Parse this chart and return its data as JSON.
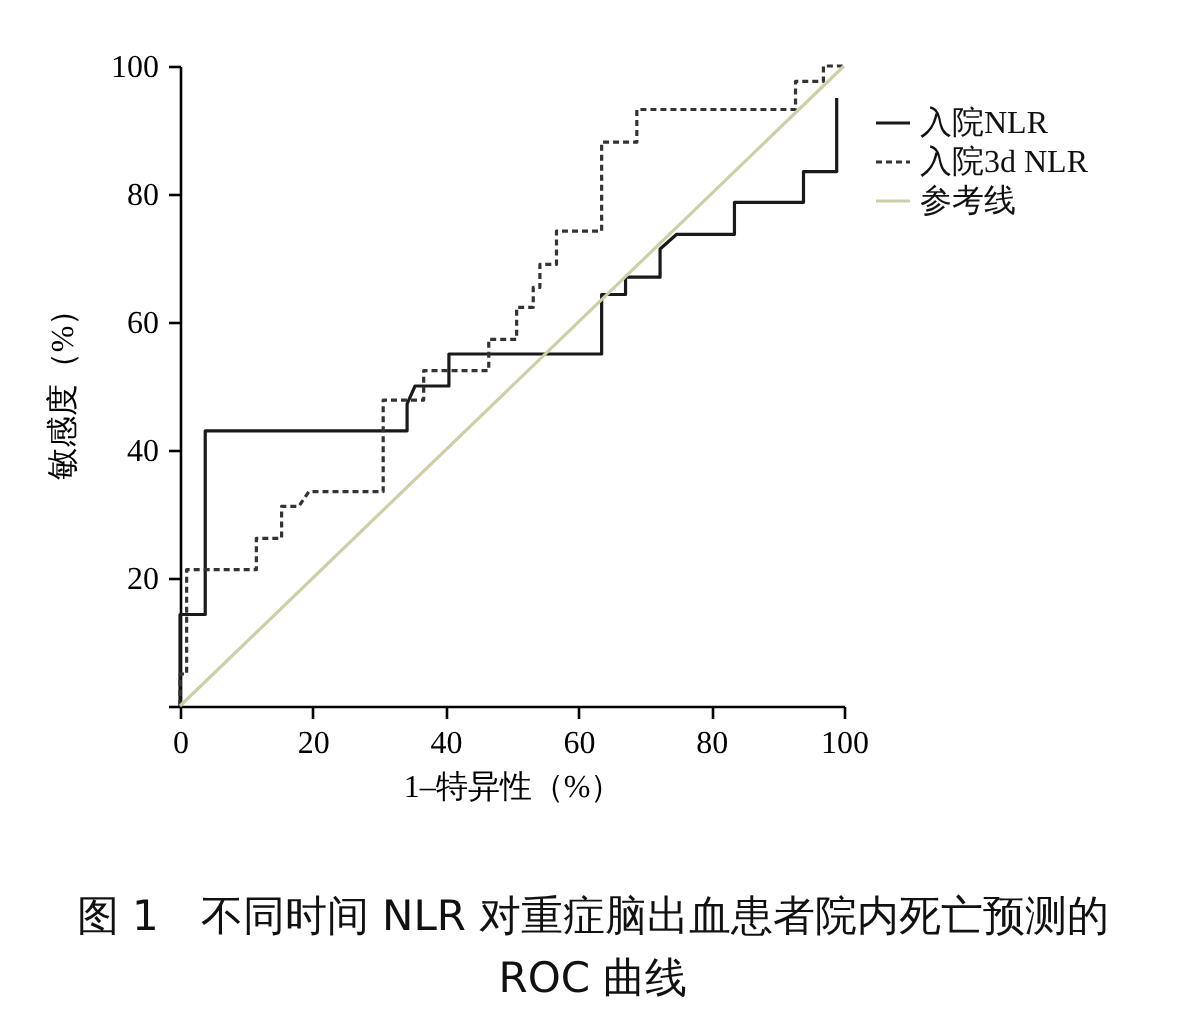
{
  "chart_data": {
    "type": "line",
    "title": "图 1　不同时间 NLR 对重症脑出血患者院内死亡预测的 ROC 曲线",
    "xlabel": "1–特异性（%）",
    "ylabel": "敏感度（%）",
    "xlim": [
      0,
      100
    ],
    "ylim": [
      0,
      100
    ],
    "xticks": [
      0,
      20,
      40,
      60,
      80,
      100
    ],
    "yticks": [
      {
        "value": 0,
        "label": null
      },
      20,
      40,
      60,
      80,
      100
    ],
    "legend": "top right",
    "series": [
      {
        "name": "入院NLR",
        "color": "#1a1a1a",
        "line_style": "solid",
        "x": [
          0,
          0,
          3.8,
          3.8,
          34.2,
          34.2,
          35.4,
          40.5,
          40.5,
          63.5,
          63.5,
          67.1,
          67.1,
          72.3,
          72.3,
          74.8,
          83.5,
          83.5,
          93.9,
          93.9,
          98.9,
          98.9
        ],
        "values": [
          0,
          14.3,
          14.3,
          43,
          43,
          47.2,
          50,
          50,
          55,
          55,
          64.3,
          64.3,
          67,
          67,
          71.4,
          73.7,
          73.7,
          78.7,
          78.7,
          83.5,
          83.5,
          95
        ]
      },
      {
        "name": "入院3d NLR",
        "color": "#333333",
        "line_style": "dashed",
        "x": [
          0,
          0,
          1,
          1,
          11.5,
          11.5,
          15.3,
          15.3,
          17.9,
          19.4,
          30.6,
          30.6,
          36.7,
          36.7,
          46.5,
          46.5,
          50.7,
          50.7,
          53.2,
          53.2,
          54.2,
          54.2,
          56.7,
          56.7,
          63.5,
          63.5,
          68.8,
          68.8,
          92.7,
          92.7,
          96.9,
          96.9,
          100
        ],
        "values": [
          0,
          5,
          5,
          21.3,
          21.3,
          26.2,
          26.2,
          31.2,
          31.2,
          33.5,
          33.5,
          47.8,
          47.8,
          52.4,
          52.4,
          57.3,
          57.3,
          62.3,
          62.3,
          65.4,
          65.4,
          69,
          69,
          74.2,
          74.2,
          88.1,
          88.1,
          93.2,
          93.2,
          97.6,
          97.6,
          100,
          100
        ]
      },
      {
        "name": "参考线",
        "color": "#cfcfa6",
        "line_style": "solid",
        "x": [
          0,
          100
        ],
        "values": [
          0,
          100
        ]
      }
    ]
  }
}
